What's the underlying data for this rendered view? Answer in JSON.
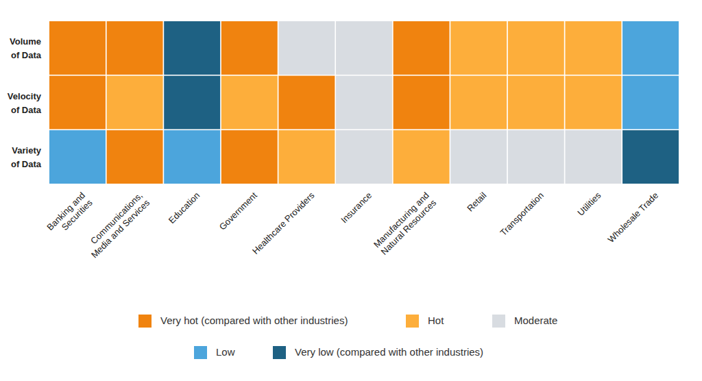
{
  "chart_data": {
    "type": "heatmap",
    "x": [
      "Banking and\nSecurities",
      "Communications,\nMedia and Services",
      "Education",
      "Government",
      "Healthcare Providers",
      "Insurance",
      "Manufacturing and\nNatural Resources",
      "Retail",
      "Transportation",
      "Utilities",
      "Wholesale Trade"
    ],
    "y": [
      "Volume\nof Data",
      "Velocity\nof Data",
      "Variety\nof Data"
    ],
    "series": [
      {
        "name": "Very hot (compared with other industries)",
        "color": "#f0830f"
      },
      {
        "name": "Hot",
        "color": "#fdae3b"
      },
      {
        "name": "Moderate",
        "color": "#d8dce1"
      },
      {
        "name": "Low",
        "color": "#4ca5dc"
      },
      {
        "name": "Very low (compared with other industries)",
        "color": "#1e6183"
      }
    ],
    "cells": [
      [
        "Very hot (compared with other industries)",
        "Very hot (compared with other industries)",
        "Very low (compared with other industries)",
        "Very hot (compared with other industries)",
        "Moderate",
        "Moderate",
        "Very hot (compared with other industries)",
        "Hot",
        "Hot",
        "Hot",
        "Low"
      ],
      [
        "Very hot (compared with other industries)",
        "Hot",
        "Very low (compared with other industries)",
        "Hot",
        "Very hot (compared with other industries)",
        "Moderate",
        "Very hot (compared with other industries)",
        "Hot",
        "Hot",
        "Hot",
        "Low"
      ],
      [
        "Low",
        "Very hot (compared with other industries)",
        "Low",
        "Very hot (compared with other industries)",
        "Hot",
        "Moderate",
        "Hot",
        "Moderate",
        "Moderate",
        "Moderate",
        "Very low (compared with other industries)"
      ]
    ]
  }
}
